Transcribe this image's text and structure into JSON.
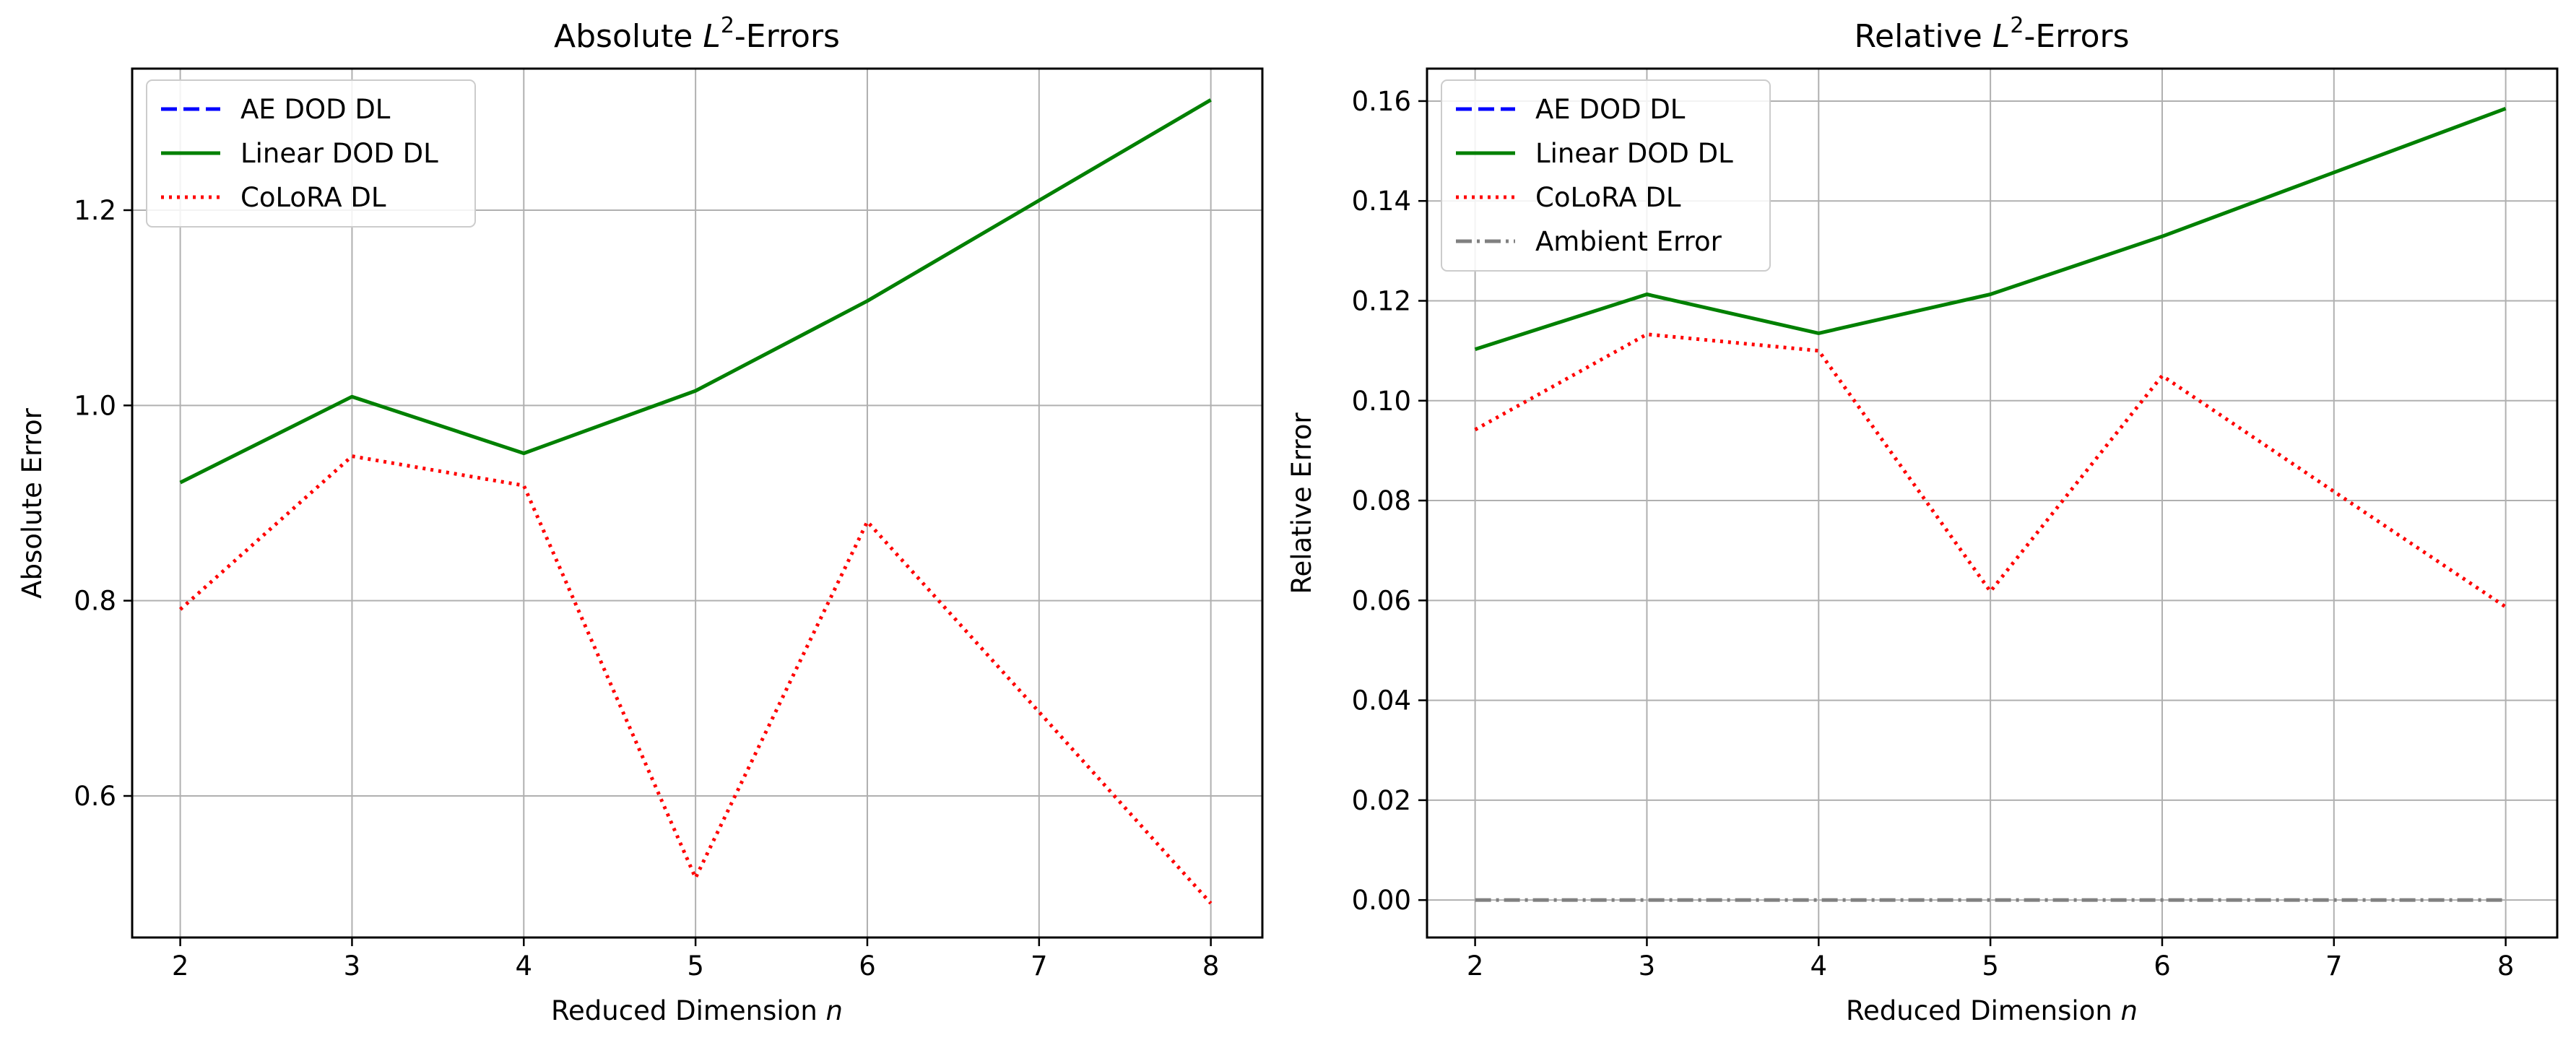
{
  "chart_data": [
    {
      "type": "line",
      "title_prefix": "Absolute ",
      "title_math": "L",
      "title_sup": "2",
      "title_suffix": "-Errors",
      "xlabel": "Reduced Dimension ",
      "xlabel_math": "n",
      "ylabel": "Absolute Error",
      "xlim": [
        1.72,
        8.3
      ],
      "ylim": [
        0.455,
        1.345
      ],
      "xticks": [
        2,
        3,
        4,
        5,
        6,
        7,
        8
      ],
      "xtick_labels": [
        "2",
        "3",
        "4",
        "5",
        "6",
        "7",
        "8"
      ],
      "yticks": [
        0.6,
        0.8,
        1.0,
        1.2
      ],
      "ytick_labels": [
        "0.6",
        "0.8",
        "1.0",
        "1.2"
      ],
      "grid": true,
      "legend_position": "top-left",
      "series": [
        {
          "name": "AE DOD DL",
          "color": "#0000ff",
          "dash": "dashed",
          "x": [],
          "y": []
        },
        {
          "name": "Linear DOD DL",
          "color": "#008000",
          "dash": "solid",
          "x": [
            2,
            3,
            4,
            5,
            6,
            7,
            8
          ],
          "y": [
            0.921,
            1.009,
            0.951,
            1.015,
            1.107,
            1.21,
            1.313
          ]
        },
        {
          "name": "CoLoRA DL",
          "color": "#ff0000",
          "dash": "dotted",
          "x": [
            2,
            3,
            4,
            5,
            6,
            7,
            8
          ],
          "y": [
            0.791,
            0.948,
            0.918,
            0.516,
            0.881,
            0.686,
            0.49
          ]
        }
      ]
    },
    {
      "type": "line",
      "title_prefix": "Relative ",
      "title_math": "L",
      "title_sup": "2",
      "title_suffix": "-Errors",
      "xlabel": "Reduced Dimension ",
      "xlabel_math": "n",
      "ylabel": "Relative Error",
      "xlim": [
        1.72,
        8.3
      ],
      "ylim": [
        -0.0075,
        0.1665
      ],
      "xticks": [
        2,
        3,
        4,
        5,
        6,
        7,
        8
      ],
      "xtick_labels": [
        "2",
        "3",
        "4",
        "5",
        "6",
        "7",
        "8"
      ],
      "yticks": [
        0.0,
        0.02,
        0.04,
        0.06,
        0.08,
        0.1,
        0.12,
        0.14,
        0.16
      ],
      "ytick_labels": [
        "0.00",
        "0.02",
        "0.04",
        "0.06",
        "0.08",
        "0.10",
        "0.12",
        "0.14",
        "0.16"
      ],
      "grid": true,
      "legend_position": "top-left",
      "series": [
        {
          "name": "AE DOD DL",
          "color": "#0000ff",
          "dash": "dashed",
          "x": [],
          "y": []
        },
        {
          "name": "Linear DOD DL",
          "color": "#008000",
          "dash": "solid",
          "x": [
            2,
            3,
            4,
            5,
            6,
            7,
            8
          ],
          "y": [
            0.1103,
            0.1213,
            0.1135,
            0.1213,
            0.1329,
            0.1457,
            0.1585
          ]
        },
        {
          "name": "CoLoRA DL",
          "color": "#ff0000",
          "dash": "dotted",
          "x": [
            2,
            3,
            4,
            5,
            6,
            7,
            8
          ],
          "y": [
            0.0942,
            0.1133,
            0.11,
            0.0618,
            0.105,
            0.0818,
            0.0587
          ]
        },
        {
          "name": "Ambient Error",
          "color": "#808080",
          "dash": "dashdot",
          "x": [
            2,
            3,
            4,
            5,
            6,
            7,
            8
          ],
          "y": [
            0.0,
            0.0,
            0.0,
            0.0,
            0.0,
            0.0,
            0.0
          ]
        }
      ]
    }
  ]
}
